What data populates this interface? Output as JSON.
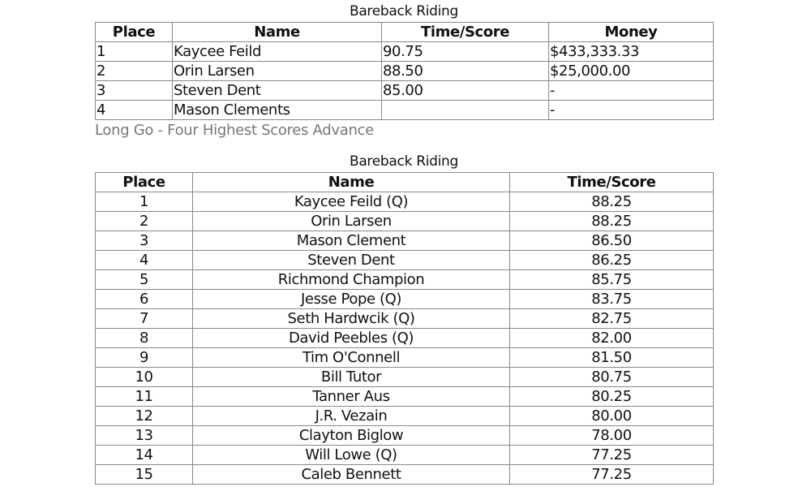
{
  "results": {
    "title": "Bareback Riding",
    "headers": [
      "Place",
      "Name",
      "Time/Score",
      "Money"
    ],
    "rows": [
      [
        "1",
        "Kaycee Feild",
        "90.75",
        "$433,333.33"
      ],
      [
        "2",
        "Orin Larsen",
        "88.50",
        "$25,000.00"
      ],
      [
        "3",
        "Steven Dent",
        "85.00",
        " -"
      ],
      [
        "4",
        "Mason Clements",
        "",
        " -"
      ]
    ]
  },
  "note": "Long Go - Four Highest Scores Advance",
  "long_go": {
    "title": "Bareback Riding",
    "headers": [
      "Place",
      "Name",
      "Time/Score"
    ],
    "rows": [
      [
        "1",
        "Kaycee Feild (Q)",
        "88.25"
      ],
      [
        "2",
        "Orin Larsen",
        "88.25"
      ],
      [
        "3",
        "Mason Clement",
        "86.50"
      ],
      [
        "4",
        "Steven Dent",
        "86.25"
      ],
      [
        "5",
        "Richmond Champion",
        "85.75"
      ],
      [
        "6",
        "Jesse Pope (Q)",
        "83.75"
      ],
      [
        "7",
        "Seth Hardwcik (Q)",
        "82.75"
      ],
      [
        "8",
        "David Peebles (Q)",
        "82.00"
      ],
      [
        "9",
        "Tim O'Connell",
        "81.50"
      ],
      [
        "10",
        "Bill Tutor",
        "80.75"
      ],
      [
        "11",
        "Tanner Aus",
        "80.25"
      ],
      [
        "12",
        "J.R. Vezain",
        "80.00"
      ],
      [
        "13",
        "Clayton Biglow",
        "78.00"
      ],
      [
        "14",
        "Will Lowe (Q)",
        "77.25"
      ],
      [
        "15",
        "Caleb Bennett",
        "77.25"
      ]
    ]
  }
}
